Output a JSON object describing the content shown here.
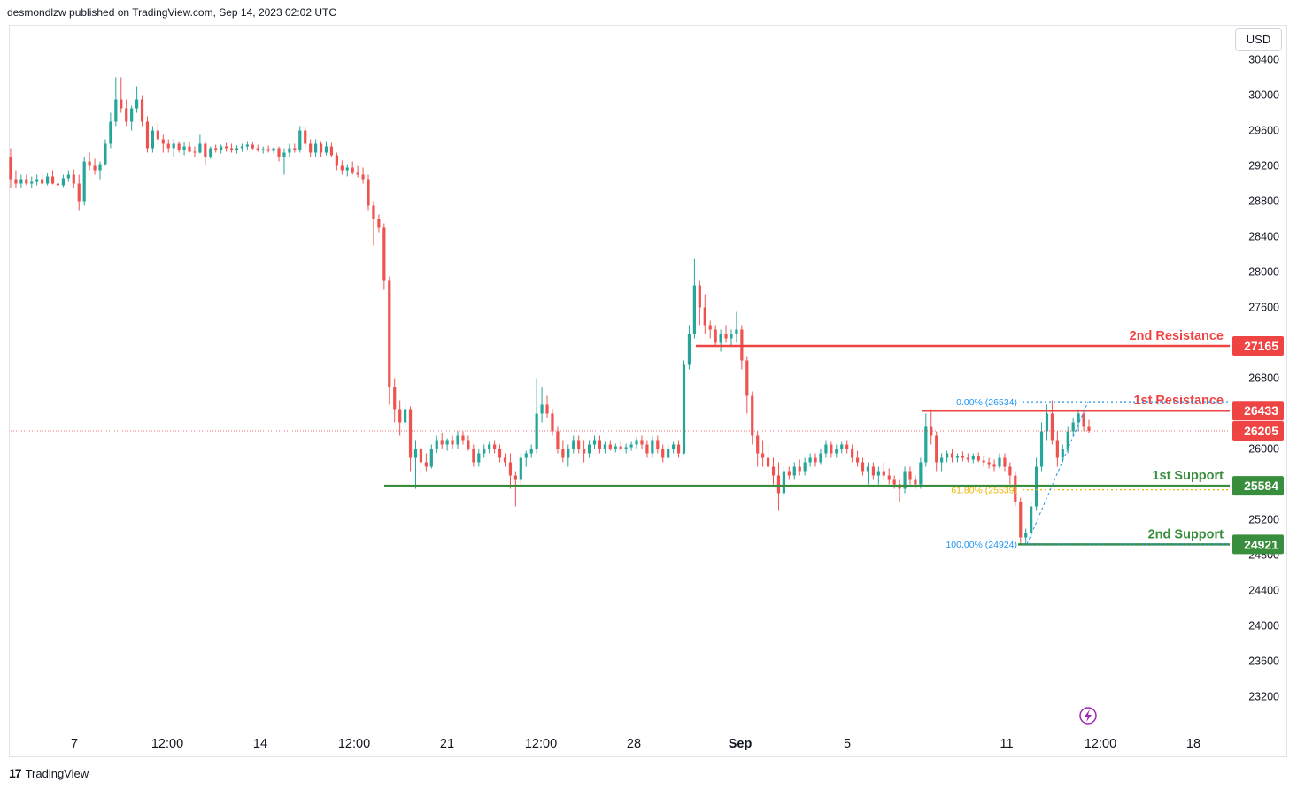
{
  "header": {
    "publisher": "desmondlzw published on TradingView.com, Sep 14, 2023 02:02 UTC"
  },
  "currency": "USD",
  "footer": {
    "brand": "TradingView",
    "logo_icon": "tradingview-logo-icon"
  },
  "chart_data": {
    "type": "candlestick",
    "title": "",
    "xlabel": "",
    "ylabel": "",
    "ylim": [
      22950,
      30500
    ],
    "y_ticks": [
      30400,
      30000,
      29600,
      29200,
      28800,
      28400,
      28000,
      27600,
      26800,
      26000,
      25200,
      24800,
      24400,
      24000,
      23600,
      23200
    ],
    "x_ticks": [
      {
        "label": "7",
        "bold": false
      },
      {
        "label": "12:00",
        "bold": false
      },
      {
        "label": "14",
        "bold": false
      },
      {
        "label": "12:00",
        "bold": false
      },
      {
        "label": "21",
        "bold": false
      },
      {
        "label": "12:00",
        "bold": false
      },
      {
        "label": "28",
        "bold": false
      },
      {
        "label": "Sep",
        "bold": true
      },
      {
        "label": "5",
        "bold": false
      },
      {
        "label": "11",
        "bold": false
      },
      {
        "label": "12:00",
        "bold": false
      },
      {
        "label": "18",
        "bold": false
      }
    ],
    "colors": {
      "up": "#26a69a",
      "down": "#ef5350",
      "resistance": "#ef4444",
      "support": "#388e3c",
      "fib": "#2196f3",
      "fib_618": "#f0b400",
      "last_price_line": "#f23645"
    },
    "candles": [
      [
        29300,
        29400,
        28950,
        29050
      ],
      [
        29050,
        29150,
        28950,
        29000
      ],
      [
        29000,
        29100,
        28950,
        29050
      ],
      [
        29050,
        29100,
        28980,
        29000
      ],
      [
        29000,
        29080,
        28950,
        29020
      ],
      [
        29020,
        29100,
        28980,
        29050
      ],
      [
        29050,
        29100,
        28990,
        29000
      ],
      [
        29000,
        29120,
        28980,
        29080
      ],
      [
        29080,
        29150,
        28990,
        29000
      ],
      [
        29000,
        29060,
        28950,
        28980
      ],
      [
        28980,
        29100,
        28960,
        29060
      ],
      [
        29060,
        29150,
        29020,
        29100
      ],
      [
        29100,
        29160,
        28950,
        29000
      ],
      [
        29000,
        29100,
        28700,
        28800
      ],
      [
        28800,
        29300,
        28750,
        29250
      ],
      [
        29250,
        29350,
        29150,
        29200
      ],
      [
        29200,
        29280,
        29100,
        29150
      ],
      [
        29150,
        29250,
        29050,
        29220
      ],
      [
        29220,
        29500,
        29200,
        29450
      ],
      [
        29450,
        29800,
        29400,
        29700
      ],
      [
        29700,
        30200,
        29650,
        29950
      ],
      [
        29950,
        30200,
        29800,
        29850
      ],
      [
        29850,
        29950,
        29650,
        29700
      ],
      [
        29700,
        29880,
        29600,
        29850
      ],
      [
        29850,
        30100,
        29800,
        29950
      ],
      [
        29950,
        30000,
        29650,
        29700
      ],
      [
        29700,
        29760,
        29350,
        29400
      ],
      [
        29400,
        29650,
        29350,
        29600
      ],
      [
        29600,
        29680,
        29450,
        29500
      ],
      [
        29500,
        29550,
        29350,
        29450
      ],
      [
        29450,
        29500,
        29350,
        29400
      ],
      [
        29400,
        29500,
        29300,
        29450
      ],
      [
        29450,
        29480,
        29350,
        29380
      ],
      [
        29380,
        29470,
        29320,
        29420
      ],
      [
        29420,
        29480,
        29350,
        29360
      ],
      [
        29360,
        29420,
        29300,
        29350
      ],
      [
        29350,
        29550,
        29340,
        29450
      ],
      [
        29450,
        29480,
        29200,
        29300
      ],
      [
        29300,
        29420,
        29280,
        29400
      ],
      [
        29400,
        29440,
        29350,
        29380
      ],
      [
        29380,
        29440,
        29340,
        29420
      ],
      [
        29420,
        29460,
        29360,
        29400
      ],
      [
        29400,
        29450,
        29350,
        29380
      ],
      [
        29380,
        29430,
        29340,
        29400
      ],
      [
        29400,
        29450,
        29360,
        29420
      ],
      [
        29420,
        29480,
        29380,
        29440
      ],
      [
        29440,
        29470,
        29380,
        29400
      ],
      [
        29400,
        29440,
        29360,
        29380
      ],
      [
        29380,
        29420,
        29340,
        29390
      ],
      [
        29390,
        29430,
        29350,
        29370
      ],
      [
        29370,
        29410,
        29340,
        29400
      ],
      [
        29400,
        29420,
        29250,
        29300
      ],
      [
        29300,
        29400,
        29100,
        29350
      ],
      [
        29350,
        29450,
        29300,
        29400
      ],
      [
        29400,
        29450,
        29350,
        29380
      ],
      [
        29380,
        29650,
        29350,
        29600
      ],
      [
        29600,
        29650,
        29400,
        29450
      ],
      [
        29450,
        29500,
        29300,
        29350
      ],
      [
        29350,
        29500,
        29300,
        29450
      ],
      [
        29450,
        29480,
        29300,
        29350
      ],
      [
        29350,
        29480,
        29320,
        29420
      ],
      [
        29420,
        29460,
        29300,
        29320
      ],
      [
        29320,
        29350,
        29150,
        29200
      ],
      [
        29200,
        29260,
        29100,
        29150
      ],
      [
        29150,
        29220,
        29080,
        29180
      ],
      [
        29180,
        29250,
        29100,
        29130
      ],
      [
        29130,
        29200,
        29070,
        29100
      ],
      [
        29100,
        29180,
        29000,
        29050
      ],
      [
        29050,
        29100,
        28700,
        28750
      ],
      [
        28750,
        28800,
        28300,
        28600
      ],
      [
        28600,
        28650,
        28450,
        28500
      ],
      [
        28500,
        28550,
        27800,
        27900
      ],
      [
        27900,
        27950,
        26500,
        26700
      ],
      [
        26700,
        26800,
        26300,
        26450
      ],
      [
        26450,
        26550,
        26150,
        26300
      ],
      [
        26300,
        26500,
        26250,
        26450
      ],
      [
        26450,
        26480,
        25750,
        25900
      ],
      [
        25900,
        26100,
        25550,
        26000
      ],
      [
        26000,
        26050,
        25700,
        25850
      ],
      [
        25850,
        25950,
        25750,
        25800
      ],
      [
        25800,
        26050,
        25780,
        26000
      ],
      [
        26000,
        26150,
        25950,
        26100
      ],
      [
        26100,
        26180,
        26000,
        26050
      ],
      [
        26050,
        26120,
        25980,
        26100
      ],
      [
        26100,
        26150,
        26000,
        26050
      ],
      [
        26050,
        26200,
        26000,
        26150
      ],
      [
        26150,
        26200,
        26050,
        26100
      ],
      [
        26100,
        26150,
        25980,
        26000
      ],
      [
        26000,
        26050,
        25800,
        25850
      ],
      [
        25850,
        26000,
        25800,
        25950
      ],
      [
        25950,
        26050,
        25900,
        26000
      ],
      [
        26000,
        26080,
        25950,
        26050
      ],
      [
        26050,
        26100,
        25950,
        26000
      ],
      [
        26000,
        26050,
        25850,
        25900
      ],
      [
        25900,
        25950,
        25800,
        25850
      ],
      [
        25850,
        25950,
        25550,
        25700
      ],
      [
        25700,
        25750,
        25350,
        25650
      ],
      [
        25650,
        25950,
        25600,
        25900
      ],
      [
        25900,
        25980,
        25800,
        25950
      ],
      [
        25950,
        26050,
        25900,
        26000
      ],
      [
        26000,
        26800,
        25950,
        26400
      ],
      [
        26400,
        26700,
        26300,
        26500
      ],
      [
        26500,
        26600,
        26350,
        26400
      ],
      [
        26400,
        26450,
        26150,
        26200
      ],
      [
        26200,
        26250,
        25950,
        26000
      ],
      [
        26000,
        26100,
        25850,
        25900
      ],
      [
        25900,
        26050,
        25800,
        26000
      ],
      [
        26000,
        26150,
        25950,
        26100
      ],
      [
        26100,
        26150,
        25950,
        26000
      ],
      [
        26000,
        26100,
        25850,
        25950
      ],
      [
        25950,
        26100,
        25900,
        26050
      ],
      [
        26050,
        26150,
        26000,
        26100
      ],
      [
        26100,
        26150,
        25950,
        26000
      ],
      [
        26000,
        26080,
        25950,
        26050
      ],
      [
        26050,
        26100,
        25980,
        26000
      ],
      [
        26000,
        26060,
        25960,
        26030
      ],
      [
        26030,
        26080,
        25980,
        26000
      ],
      [
        26000,
        26060,
        25950,
        26020
      ],
      [
        26020,
        26080,
        25980,
        26050
      ],
      [
        26050,
        26130,
        26000,
        26100
      ],
      [
        26100,
        26150,
        26000,
        26050
      ],
      [
        26050,
        26100,
        25900,
        25950
      ],
      [
        25950,
        26150,
        25900,
        26100
      ],
      [
        26100,
        26150,
        25950,
        26000
      ],
      [
        26000,
        26050,
        25850,
        25900
      ],
      [
        25900,
        26050,
        25880,
        26000
      ],
      [
        26000,
        26080,
        25950,
        26050
      ],
      [
        26050,
        26100,
        25900,
        25950
      ],
      [
        25950,
        27000,
        25940,
        26950
      ],
      [
        26950,
        27400,
        26900,
        27300
      ],
      [
        27300,
        28150,
        27250,
        27850
      ],
      [
        27850,
        27900,
        27400,
        27600
      ],
      [
        27600,
        27750,
        27300,
        27400
      ],
      [
        27400,
        27450,
        27250,
        27350
      ],
      [
        27350,
        27400,
        27150,
        27200
      ],
      [
        27200,
        27350,
        27100,
        27300
      ],
      [
        27300,
        27400,
        27200,
        27250
      ],
      [
        27250,
        27350,
        27150,
        27300
      ],
      [
        27300,
        27550,
        27200,
        27350
      ],
      [
        27350,
        27400,
        26900,
        27000
      ],
      [
        27000,
        27050,
        26400,
        26600
      ],
      [
        26600,
        26650,
        26050,
        26150
      ],
      [
        26150,
        26200,
        25800,
        25950
      ],
      [
        25950,
        26100,
        25800,
        25900
      ],
      [
        25900,
        26050,
        25550,
        25800
      ],
      [
        25800,
        25900,
        25600,
        25700
      ],
      [
        25700,
        25850,
        25300,
        25500
      ],
      [
        25500,
        25800,
        25450,
        25750
      ],
      [
        25750,
        25800,
        25650,
        25700
      ],
      [
        25700,
        25850,
        25650,
        25800
      ],
      [
        25800,
        25880,
        25700,
        25750
      ],
      [
        25750,
        25900,
        25700,
        25850
      ],
      [
        25850,
        25950,
        25800,
        25900
      ],
      [
        25900,
        25950,
        25800,
        25850
      ],
      [
        25850,
        26000,
        25820,
        25950
      ],
      [
        25950,
        26100,
        25900,
        26050
      ],
      [
        26050,
        26080,
        25900,
        25950
      ],
      [
        25950,
        26050,
        25900,
        26000
      ],
      [
        26000,
        26080,
        25950,
        26050
      ],
      [
        26050,
        26100,
        25950,
        26000
      ],
      [
        26000,
        26050,
        25850,
        25900
      ],
      [
        25900,
        25980,
        25800,
        25850
      ],
      [
        25850,
        25900,
        25700,
        25750
      ],
      [
        25750,
        25850,
        25600,
        25800
      ],
      [
        25800,
        25850,
        25650,
        25700
      ],
      [
        25700,
        25800,
        25600,
        25750
      ],
      [
        25750,
        25850,
        25650,
        25700
      ],
      [
        25700,
        25780,
        25600,
        25650
      ],
      [
        25650,
        25700,
        25550,
        25600
      ],
      [
        25600,
        25650,
        25400,
        25550
      ],
      [
        25550,
        25800,
        25500,
        25750
      ],
      [
        25750,
        25800,
        25600,
        25650
      ],
      [
        25650,
        25700,
        25550,
        25600
      ],
      [
        25600,
        25900,
        25550,
        25850
      ],
      [
        25850,
        26400,
        25800,
        26250
      ],
      [
        26250,
        26450,
        26050,
        26150
      ],
      [
        26150,
        26200,
        25750,
        25850
      ],
      [
        25850,
        25950,
        25750,
        25900
      ],
      [
        25900,
        25980,
        25850,
        25950
      ],
      [
        25950,
        26000,
        25850,
        25900
      ],
      [
        25900,
        25950,
        25850,
        25920
      ],
      [
        25920,
        25970,
        25860,
        25900
      ],
      [
        25900,
        25950,
        25850,
        25880
      ],
      [
        25880,
        25950,
        25840,
        25920
      ],
      [
        25920,
        25960,
        25850,
        25870
      ],
      [
        25870,
        25920,
        25800,
        25850
      ],
      [
        25850,
        25900,
        25780,
        25820
      ],
      [
        25820,
        25880,
        25750,
        25800
      ],
      [
        25800,
        25950,
        25780,
        25900
      ],
      [
        25900,
        25950,
        25750,
        25800
      ],
      [
        25800,
        25850,
        25600,
        25700
      ],
      [
        25700,
        25750,
        25350,
        25400
      ],
      [
        25400,
        25450,
        24920,
        25000
      ],
      [
        25000,
        25100,
        24930,
        25050
      ],
      [
        25050,
        25400,
        25000,
        25350
      ],
      [
        25350,
        25900,
        25300,
        25800
      ],
      [
        25800,
        26300,
        25750,
        26200
      ],
      [
        26200,
        26500,
        26100,
        26400
      ],
      [
        26400,
        26550,
        26050,
        26100
      ],
      [
        26100,
        26200,
        25800,
        25900
      ],
      [
        25900,
        26050,
        25850,
        26000
      ],
      [
        26000,
        26250,
        25950,
        26200
      ],
      [
        26200,
        26350,
        26150,
        26300
      ],
      [
        26300,
        26450,
        26200,
        26400
      ],
      [
        26400,
        26450,
        26200,
        26250
      ],
      [
        26250,
        26330,
        26180,
        26205
      ]
    ],
    "levels": [
      {
        "label": "2nd Resistance",
        "value": 27165,
        "tag": "27165",
        "color": "#ef4444"
      },
      {
        "label": "1st Resistance",
        "value": 26433,
        "tag": "26433",
        "color": "#ef4444"
      },
      {
        "label": "1st Support",
        "value": 25584,
        "tag": "25584",
        "color": "#388e3c"
      },
      {
        "label": "2nd Support",
        "value": 24921,
        "tag": "24921",
        "color": "#388e3c"
      }
    ],
    "last_price": {
      "value": 26205,
      "tag": "26205",
      "color": "#ef4444"
    },
    "fibonacci": [
      {
        "label": "0.00% (26534)",
        "value": 26534,
        "color": "#2196f3"
      },
      {
        "label": "61.80% (25539)",
        "value": 25539,
        "color": "#f0b400"
      },
      {
        "label": "100.00% (24924)",
        "value": 24924,
        "color": "#2196f3"
      }
    ]
  }
}
